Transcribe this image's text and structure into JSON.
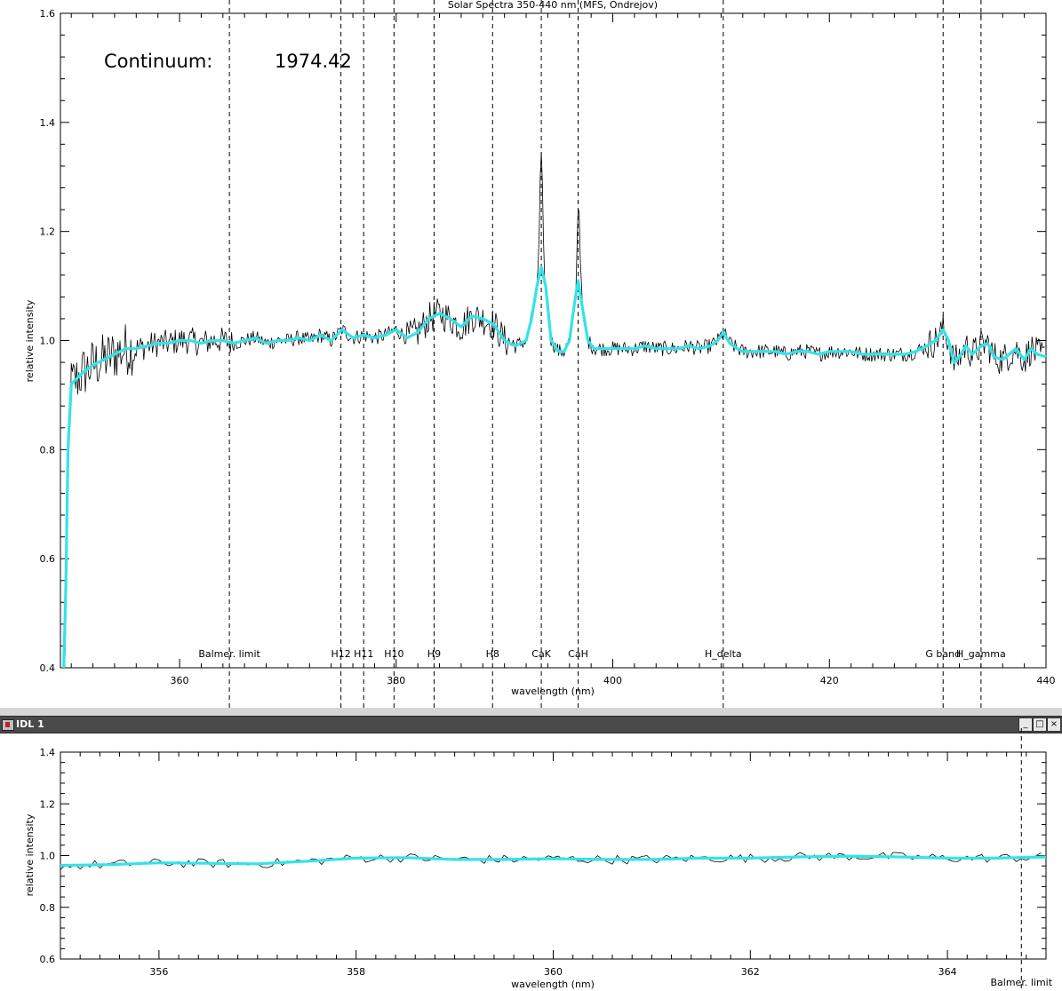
{
  "window": {
    "title": "IDL 1",
    "minimize_label": "_",
    "maximize_label": "□",
    "close_label": "×"
  },
  "colors": {
    "fit": "#33e3ea",
    "raw": "#000000",
    "background": "#ffffff"
  },
  "chart_data": [
    {
      "type": "line",
      "title": "Solar Spectra 350-440 nm (MFS, Ondrejov)",
      "xlabel": "wavelength (nm)",
      "ylabel": "relative intensity",
      "xlim": [
        349,
        440
      ],
      "ylim": [
        0.4,
        1.6
      ],
      "xticks": [
        360,
        380,
        400,
        420,
        440
      ],
      "yticks": [
        0.4,
        0.6,
        0.8,
        1.0,
        1.2,
        1.4,
        1.6
      ],
      "annotation": {
        "label": "Continuum:",
        "value": "1974.42"
      },
      "grid": false,
      "reference_lines": [
        {
          "label": "Balmer. limit",
          "x": 364.6
        },
        {
          "label": "H12",
          "x": 374.9
        },
        {
          "label": "H11",
          "x": 377.0
        },
        {
          "label": "H10",
          "x": 379.8
        },
        {
          "label": "H9",
          "x": 383.5
        },
        {
          "label": "H8",
          "x": 388.9
        },
        {
          "label": "CaK",
          "x": 393.4
        },
        {
          "label": "CaH",
          "x": 396.8
        },
        {
          "label": "H_delta",
          "x": 410.2
        },
        {
          "label": "G band",
          "x": 430.5
        },
        {
          "label": "H_gamma",
          "x": 434.0
        }
      ],
      "series": [
        {
          "role": "fit",
          "x": [
            349.3,
            349.5,
            349.7,
            350.0,
            350.5,
            351,
            352,
            353,
            354,
            355,
            356,
            357,
            358,
            359,
            360,
            361,
            362,
            363,
            364,
            365,
            366,
            367,
            368,
            369,
            370,
            371,
            372,
            373,
            374,
            375,
            376,
            377,
            378,
            379,
            380,
            381,
            382,
            383,
            384,
            385,
            386,
            387,
            388,
            389,
            390,
            391,
            392,
            392.5,
            393,
            393.4,
            393.8,
            394.3,
            395,
            395.5,
            396,
            396.4,
            396.8,
            397.2,
            397.7,
            398.3,
            399,
            400,
            401,
            402,
            403,
            404,
            405,
            406,
            407,
            408,
            409,
            409.7,
            410.2,
            410.8,
            411.5,
            412,
            413,
            414,
            415,
            416,
            417,
            418,
            419,
            420,
            421,
            422,
            423,
            424,
            425,
            426,
            427,
            428,
            429,
            429.8,
            430.5,
            431,
            431.5,
            432,
            432.6,
            433.2,
            434,
            434.6,
            435.2,
            436,
            436.6,
            437.2,
            438,
            438.6,
            439.2,
            440
          ],
          "y": [
            0.4,
            0.55,
            0.8,
            0.92,
            0.93,
            0.94,
            0.955,
            0.965,
            0.975,
            0.985,
            0.985,
            0.99,
            0.995,
            0.995,
            1.0,
            1.0,
            0.995,
            1.0,
            1.0,
            0.995,
            1.0,
            1.005,
            0.995,
            1.0,
            1.0,
            1.005,
            1.0,
            1.01,
            1.0,
            1.02,
            1.005,
            1.01,
            1.005,
            1.01,
            1.02,
            1.005,
            1.015,
            1.04,
            1.05,
            1.04,
            1.025,
            1.045,
            1.04,
            1.03,
            1.0,
            0.99,
            1.0,
            1.04,
            1.1,
            1.135,
            1.1,
            1.0,
            0.98,
            0.98,
            1.0,
            1.06,
            1.11,
            1.06,
            1.0,
            0.985,
            0.985,
            0.985,
            0.985,
            0.985,
            0.99,
            0.985,
            0.985,
            0.985,
            0.99,
            0.985,
            0.99,
            1.0,
            1.015,
            0.995,
            0.985,
            0.98,
            0.98,
            0.98,
            0.98,
            0.975,
            0.98,
            0.98,
            0.975,
            0.98,
            0.98,
            0.98,
            0.975,
            0.975,
            0.975,
            0.975,
            0.975,
            0.98,
            0.99,
            1.0,
            1.02,
            1.0,
            0.96,
            0.97,
            0.99,
            0.975,
            0.99,
            0.995,
            0.97,
            0.965,
            0.975,
            0.985,
            0.965,
            0.985,
            0.975,
            0.97
          ]
        },
        {
          "role": "raw",
          "sample_step_nm": 0.1
        }
      ]
    },
    {
      "type": "line",
      "xlabel": "wavelength (nm)",
      "ylabel": "relative intensity",
      "xlim": [
        355,
        365
      ],
      "ylim": [
        0.6,
        1.4
      ],
      "xticks": [
        356,
        358,
        360,
        362,
        364
      ],
      "yticks": [
        0.6,
        0.8,
        1.0,
        1.2,
        1.4
      ],
      "reference_lines": [
        {
          "label": "Balmer. limit",
          "x": 364.75
        }
      ],
      "series": [
        {
          "role": "fit",
          "x": [
            355.0,
            355.5,
            356.0,
            356.5,
            357.0,
            357.5,
            358.0,
            358.5,
            359.0,
            359.5,
            360.0,
            360.5,
            361.0,
            361.5,
            362.0,
            362.5,
            363.0,
            363.5,
            364.0,
            364.5,
            365.0
          ],
          "y": [
            0.962,
            0.965,
            0.972,
            0.97,
            0.968,
            0.978,
            0.99,
            0.992,
            0.985,
            0.985,
            0.988,
            0.985,
            0.985,
            0.99,
            0.99,
            0.995,
            0.998,
            0.995,
            0.99,
            0.99,
            0.995
          ]
        },
        {
          "role": "raw",
          "sample_step_nm": 0.05
        }
      ]
    }
  ]
}
